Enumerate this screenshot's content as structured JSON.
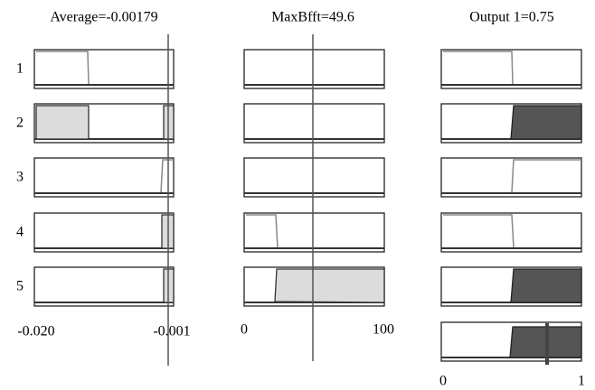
{
  "columns": [
    {
      "title": "Average=-0.00179",
      "axis_labels": [
        "-0.020",
        "-0.001"
      ]
    },
    {
      "title": "MaxBfft=49.6",
      "axis_labels": [
        "0",
        "100"
      ]
    },
    {
      "title": "Output 1=0.75",
      "axis_labels": [
        "0",
        "1"
      ]
    }
  ],
  "rows": [
    "1",
    "2",
    "3",
    "4",
    "5"
  ]
}
